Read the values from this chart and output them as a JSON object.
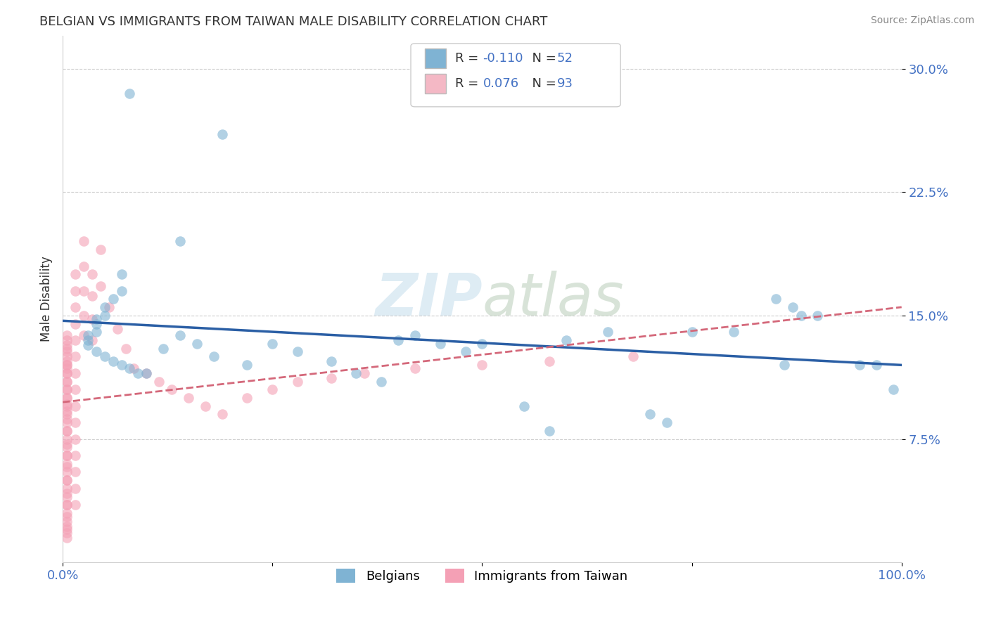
{
  "title": "BELGIAN VS IMMIGRANTS FROM TAIWAN MALE DISABILITY CORRELATION CHART",
  "source": "Source: ZipAtlas.com",
  "ylabel": "Male Disability",
  "xlim": [
    0.0,
    1.0
  ],
  "ylim": [
    0.0,
    0.32
  ],
  "xtick_positions": [
    0.0,
    0.25,
    0.5,
    0.75,
    1.0
  ],
  "xtick_labels": [
    "0.0%",
    "",
    "",
    "",
    "100.0%"
  ],
  "ytick_positions": [
    0.075,
    0.15,
    0.225,
    0.3
  ],
  "ytick_labels": [
    "7.5%",
    "15.0%",
    "22.5%",
    "30.0%"
  ],
  "belgian_color": "#7fb3d3",
  "taiwanese_color": "#f4a0b5",
  "belgian_line_color": "#2b5fa5",
  "taiwanese_line_color": "#d4687a",
  "watermark": "ZIPatlas",
  "background_color": "#ffffff",
  "grid_color": "#cccccc",
  "tick_color": "#4472c4",
  "legend_blue_color": "#7fb3d3",
  "legend_pink_color": "#f4b8c5",
  "legend_text_color": "#4472c4",
  "legend_r1": "R = -0.110",
  "legend_n1": "N = 52",
  "legend_r2": "R = 0.076",
  "legend_n2": "N = 93",
  "belgians_x": [
    0.08,
    0.19,
    0.14,
    0.07,
    0.07,
    0.06,
    0.05,
    0.05,
    0.04,
    0.04,
    0.04,
    0.03,
    0.03,
    0.03,
    0.04,
    0.05,
    0.06,
    0.07,
    0.08,
    0.09,
    0.1,
    0.12,
    0.14,
    0.16,
    0.18,
    0.22,
    0.25,
    0.28,
    0.32,
    0.35,
    0.38,
    0.42,
    0.45,
    0.48,
    0.5,
    0.55,
    0.6,
    0.65,
    0.7,
    0.72,
    0.75,
    0.8,
    0.85,
    0.86,
    0.88,
    0.9,
    0.95,
    0.97,
    0.99,
    0.4,
    0.58,
    0.87
  ],
  "belgians_y": [
    0.285,
    0.26,
    0.195,
    0.175,
    0.165,
    0.16,
    0.155,
    0.15,
    0.148,
    0.145,
    0.14,
    0.138,
    0.135,
    0.132,
    0.128,
    0.125,
    0.122,
    0.12,
    0.118,
    0.115,
    0.115,
    0.13,
    0.138,
    0.133,
    0.125,
    0.12,
    0.133,
    0.128,
    0.122,
    0.115,
    0.11,
    0.138,
    0.133,
    0.128,
    0.133,
    0.095,
    0.135,
    0.14,
    0.09,
    0.085,
    0.14,
    0.14,
    0.16,
    0.12,
    0.15,
    0.15,
    0.12,
    0.12,
    0.105,
    0.135,
    0.08,
    0.155
  ],
  "taiwanese_x": [
    0.005,
    0.005,
    0.005,
    0.005,
    0.005,
    0.005,
    0.005,
    0.005,
    0.005,
    0.005,
    0.005,
    0.005,
    0.005,
    0.005,
    0.005,
    0.005,
    0.005,
    0.005,
    0.005,
    0.005,
    0.005,
    0.005,
    0.005,
    0.005,
    0.005,
    0.005,
    0.005,
    0.005,
    0.005,
    0.005,
    0.005,
    0.005,
    0.005,
    0.005,
    0.005,
    0.005,
    0.005,
    0.005,
    0.005,
    0.005,
    0.005,
    0.005,
    0.005,
    0.005,
    0.005,
    0.005,
    0.005,
    0.005,
    0.015,
    0.015,
    0.015,
    0.015,
    0.015,
    0.015,
    0.015,
    0.015,
    0.015,
    0.015,
    0.015,
    0.015,
    0.015,
    0.015,
    0.015,
    0.025,
    0.025,
    0.025,
    0.025,
    0.025,
    0.035,
    0.035,
    0.035,
    0.035,
    0.045,
    0.045,
    0.055,
    0.065,
    0.075,
    0.085,
    0.1,
    0.115,
    0.13,
    0.15,
    0.17,
    0.19,
    0.22,
    0.25,
    0.28,
    0.32,
    0.36,
    0.42,
    0.5,
    0.58,
    0.68
  ],
  "taiwanese_y": [
    0.12,
    0.115,
    0.11,
    0.105,
    0.1,
    0.095,
    0.09,
    0.085,
    0.08,
    0.075,
    0.07,
    0.065,
    0.06,
    0.055,
    0.05,
    0.045,
    0.04,
    0.035,
    0.03,
    0.025,
    0.02,
    0.015,
    0.018,
    0.022,
    0.028,
    0.035,
    0.042,
    0.05,
    0.058,
    0.065,
    0.072,
    0.08,
    0.087,
    0.092,
    0.096,
    0.1,
    0.105,
    0.11,
    0.115,
    0.118,
    0.12,
    0.122,
    0.125,
    0.128,
    0.13,
    0.132,
    0.135,
    0.138,
    0.175,
    0.165,
    0.155,
    0.145,
    0.135,
    0.125,
    0.115,
    0.105,
    0.095,
    0.085,
    0.075,
    0.065,
    0.055,
    0.045,
    0.035,
    0.195,
    0.18,
    0.165,
    0.15,
    0.138,
    0.175,
    0.162,
    0.148,
    0.135,
    0.19,
    0.168,
    0.155,
    0.142,
    0.13,
    0.118,
    0.115,
    0.11,
    0.105,
    0.1,
    0.095,
    0.09,
    0.1,
    0.105,
    0.11,
    0.112,
    0.115,
    0.118,
    0.12,
    0.122,
    0.125
  ]
}
